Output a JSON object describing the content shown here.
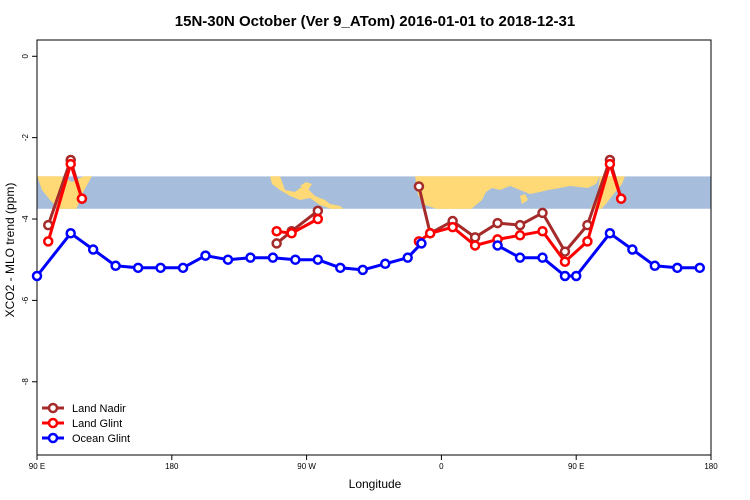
{
  "chart_data": {
    "type": "line",
    "title": "15N-30N October (Ver 9_ATom)   2016-01-01 to 2018-12-31",
    "xlabel": "Longitude",
    "ylabel": "XCO2 - MLO trend (ppm)",
    "xlim": [
      -90,
      180
    ],
    "ylim": [
      -9.8,
      0.4
    ],
    "x_ticks": [
      {
        "value": -90,
        "label": "90 E"
      },
      {
        "value": -36,
        "label": "180"
      },
      {
        "value": 18,
        "label": "90 W"
      },
      {
        "value": 72,
        "label": "0"
      },
      {
        "value": 126,
        "label": "90 E"
      },
      {
        "value": 180,
        "label": "180"
      }
    ],
    "y_ticks": [
      {
        "value": 0,
        "label": "0"
      },
      {
        "value": -2,
        "label": "-2"
      },
      {
        "value": -4,
        "label": "-4"
      },
      {
        "value": -6,
        "label": "-6"
      },
      {
        "value": -8,
        "label": "-8"
      }
    ],
    "grid": false,
    "legend_position": "bottom-left",
    "map_band": {
      "y_top": -2.95,
      "y_bottom": -3.75,
      "ocean_color": "#a6bddb",
      "land_color": "#fed976"
    },
    "series": [
      {
        "name": "Land Nadir",
        "color": "#a52a2a",
        "segments": [
          [
            [
              -85.5,
              -4.15
            ],
            [
              -76.5,
              -2.55
            ],
            [
              -72,
              -3.5
            ]
          ],
          [
            [
              6,
              -4.6
            ],
            [
              12,
              -4.3
            ],
            [
              22.5,
              -3.8
            ]
          ],
          [
            [
              63,
              -3.2
            ],
            [
              67.5,
              -4.35
            ],
            [
              76.5,
              -4.05
            ],
            [
              85.5,
              -4.45
            ],
            [
              94.5,
              -4.1
            ],
            [
              103.5,
              -4.15
            ],
            [
              112.5,
              -3.85
            ],
            [
              121.5,
              -4.8
            ],
            [
              130.5,
              -4.15
            ],
            [
              139.5,
              -2.55
            ],
            [
              144,
              -3.5
            ]
          ]
        ]
      },
      {
        "name": "Land Glint",
        "color": "#ff0000",
        "segments": [
          [
            [
              -85.5,
              -4.55
            ],
            [
              -76.5,
              -2.65
            ],
            [
              -72,
              -3.5
            ]
          ],
          [
            [
              6,
              -4.3
            ],
            [
              12,
              -4.35
            ],
            [
              22.5,
              -4.0
            ]
          ],
          [
            [
              63,
              -4.55
            ],
            [
              67.5,
              -4.35
            ],
            [
              76.5,
              -4.2
            ],
            [
              85.5,
              -4.65
            ],
            [
              94.5,
              -4.5
            ],
            [
              103.5,
              -4.4
            ],
            [
              112.5,
              -4.3
            ],
            [
              121.5,
              -5.05
            ],
            [
              130.5,
              -4.55
            ],
            [
              139.5,
              -2.65
            ],
            [
              144,
              -3.5
            ]
          ]
        ]
      },
      {
        "name": "Ocean Glint",
        "color": "#0000ff",
        "segments": [
          [
            [
              -90,
              -5.4
            ],
            [
              -76.5,
              -4.35
            ],
            [
              -67.5,
              -4.75
            ],
            [
              -58.5,
              -5.15
            ],
            [
              -49.5,
              -5.2
            ],
            [
              -40.5,
              -5.2
            ],
            [
              -31.5,
              -5.2
            ],
            [
              -22.5,
              -4.9
            ],
            [
              -13.5,
              -5.0
            ],
            [
              -4.5,
              -4.95
            ],
            [
              4.5,
              -4.95
            ],
            [
              13.5,
              -5.0
            ],
            [
              22.5,
              -5.0
            ],
            [
              31.5,
              -5.2
            ],
            [
              40.5,
              -5.25
            ],
            [
              49.5,
              -5.1
            ],
            [
              58.5,
              -4.95
            ],
            [
              64,
              -4.6
            ]
          ],
          [
            [
              94.5,
              -4.65
            ],
            [
              103.5,
              -4.95
            ],
            [
              112.5,
              -4.95
            ],
            [
              121.5,
              -5.4
            ],
            [
              126,
              -5.4
            ],
            [
              139.5,
              -4.35
            ],
            [
              148.5,
              -4.75
            ],
            [
              157.5,
              -5.15
            ],
            [
              166.5,
              -5.2
            ],
            [
              175.5,
              -5.2
            ]
          ]
        ]
      }
    ]
  }
}
